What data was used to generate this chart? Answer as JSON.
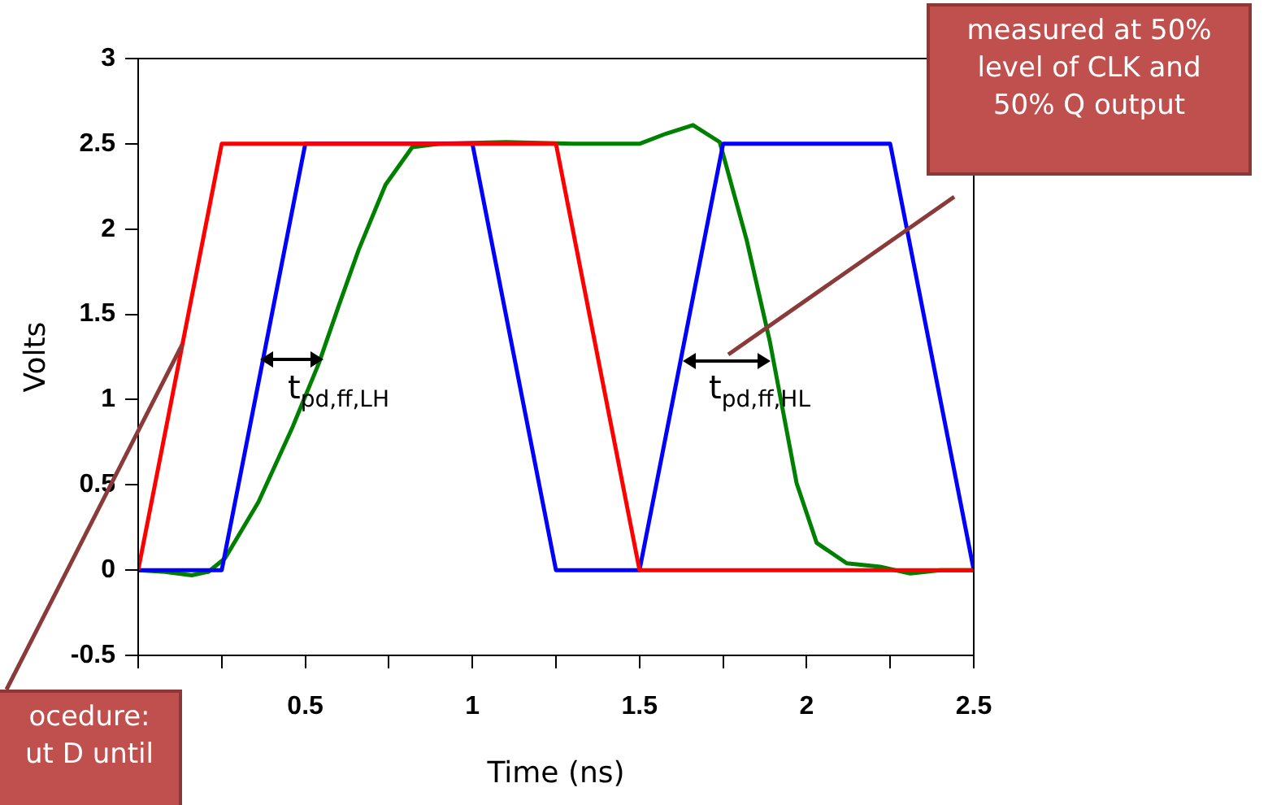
{
  "chart_data": {
    "type": "line",
    "xlabel": "Time (ns)",
    "ylabel": "Volts",
    "xlim": [
      0,
      2.5
    ],
    "ylim": [
      -0.5,
      3
    ],
    "xticks": [
      {
        "value": 0,
        "label": null
      },
      {
        "value": 0.25,
        "label": null
      },
      0.5,
      {
        "value": 0.75,
        "label": null
      },
      1,
      {
        "value": 1.25,
        "label": null
      },
      1.5,
      {
        "value": 1.75,
        "label": null
      },
      2,
      {
        "value": 2.25,
        "label": null
      },
      2.5
    ],
    "yticks": [
      -0.5,
      0,
      0.5,
      1,
      1.5,
      2,
      2.5,
      3
    ],
    "grid": false,
    "legend": false,
    "marker": "none",
    "line_style": "solid",
    "series": [
      {
        "color": "#ff0000",
        "x": [
          0,
          0.25,
          1.25,
          1.5,
          2.5
        ],
        "values": [
          0,
          2.5,
          2.5,
          0,
          0
        ]
      },
      {
        "color": "#0000ff",
        "x": [
          0,
          0.25,
          0.5,
          1.0,
          1.25,
          1.5,
          1.75,
          2.25,
          2.5
        ],
        "values": [
          0,
          0,
          2.5,
          2.5,
          0,
          0,
          2.5,
          2.5,
          0
        ]
      },
      {
        "color": "#008000",
        "x": [
          0,
          0.08,
          0.16,
          0.21,
          0.26,
          0.36,
          0.46,
          0.54,
          0.6,
          0.66,
          0.74,
          0.82,
          0.9,
          1.1,
          1.3,
          1.5,
          1.58,
          1.66,
          1.74,
          1.82,
          1.89,
          1.97,
          2.03,
          2.12,
          2.22,
          2.31,
          2.4,
          2.5
        ],
        "values": [
          0,
          -0.01,
          -0.03,
          -0.01,
          0.07,
          0.4,
          0.83,
          1.21,
          1.55,
          1.88,
          2.26,
          2.48,
          2.5,
          2.51,
          2.5,
          2.5,
          2.56,
          2.61,
          2.51,
          1.94,
          1.34,
          0.51,
          0.16,
          0.04,
          0.02,
          -0.02,
          0,
          0
        ]
      }
    ],
    "annotations": [
      "t$_{pd,ff,LH}$",
      "t$_{pd,ff,HL}$",
      "measured at 50%\nlevel of CLK and\n50% Q output",
      "ocedure:\nut D until"
    ]
  }
}
